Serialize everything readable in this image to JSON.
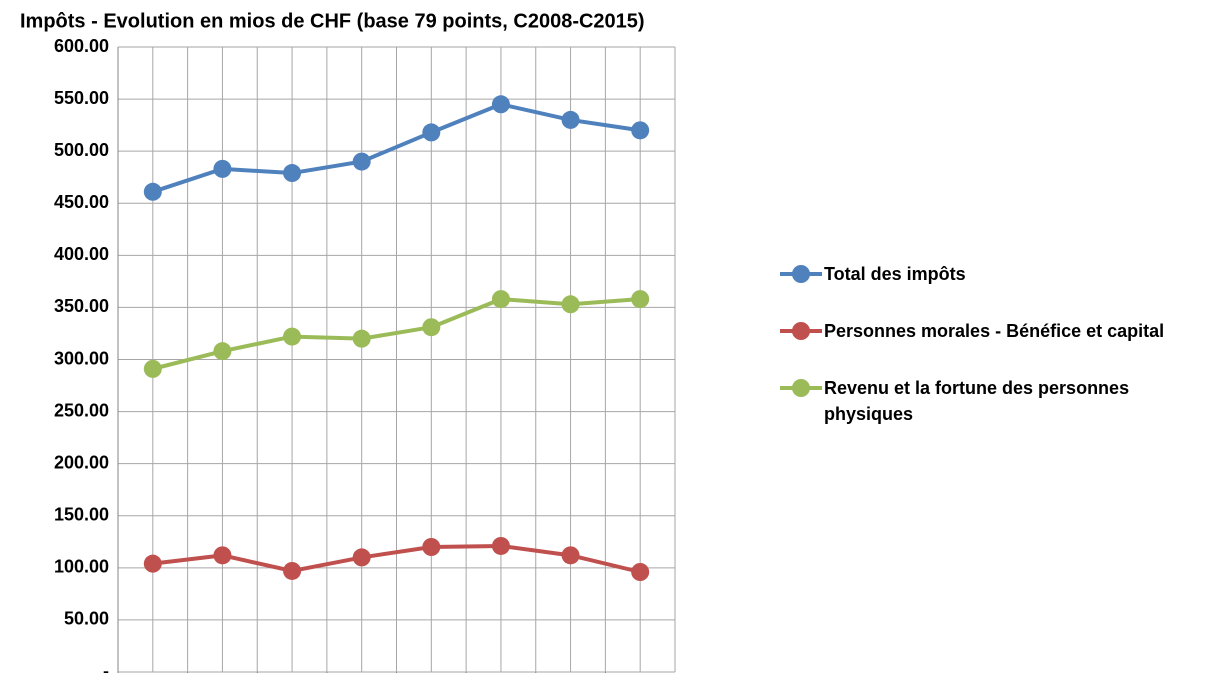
{
  "chart_data": {
    "type": "line",
    "title": "Impôts - Evolution en mios de CHF (base 79 points, C2008-C2015)",
    "categories": [
      null,
      null,
      null,
      null,
      null,
      null,
      null,
      null
    ],
    "series": [
      {
        "name": "Total des impôts",
        "color": "#4f81bd",
        "values": [
          461,
          483,
          479,
          490,
          518,
          545,
          530,
          520
        ]
      },
      {
        "name": "Personnes morales - Bénéfice et capital",
        "color": "#c0504d",
        "values": [
          104,
          112,
          97,
          110,
          120,
          121,
          112,
          96
        ]
      },
      {
        "name": "Revenu et la fortune des personnes physiques",
        "color": "#9bbb59",
        "values": [
          291,
          308,
          322,
          320,
          331,
          358,
          353,
          358
        ]
      }
    ],
    "ylim": [
      0,
      600
    ],
    "yticks": [
      {
        "value": 0,
        "label": "-"
      },
      {
        "value": 50,
        "label": "50.00"
      },
      {
        "value": 100,
        "label": "100.00"
      },
      {
        "value": 150,
        "label": "150.00"
      },
      {
        "value": 200,
        "label": "200.00"
      },
      {
        "value": 250,
        "label": "250.00"
      },
      {
        "value": 300,
        "label": "300.00"
      },
      {
        "value": 350,
        "label": "350.00"
      },
      {
        "value": 400,
        "label": "400.00"
      },
      {
        "value": 450,
        "label": "450.00"
      },
      {
        "value": 500,
        "label": "500.00"
      },
      {
        "value": 550,
        "label": "550.00"
      },
      {
        "value": 600,
        "label": "600.00"
      }
    ],
    "grid": true,
    "legend": "right"
  }
}
